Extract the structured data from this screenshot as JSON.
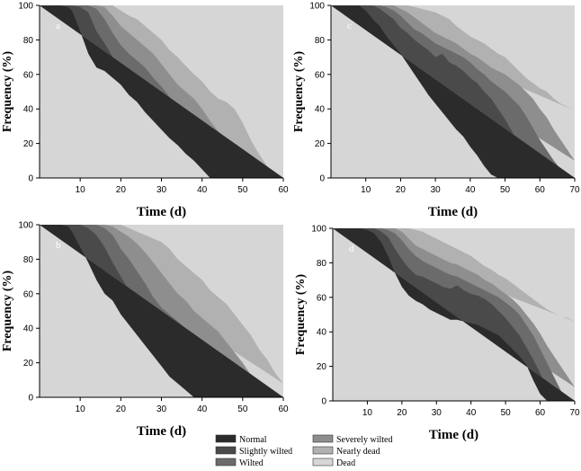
{
  "chart_data": [
    {
      "type": "area",
      "panel_label": "a",
      "xlabel": "Time (d)",
      "ylabel": "Frequency (%)",
      "xlim": [
        0,
        60
      ],
      "ylim": [
        0,
        100
      ],
      "xticks": [
        10,
        20,
        30,
        40,
        50,
        60
      ],
      "yticks": [
        0,
        20,
        40,
        60,
        80,
        100
      ],
      "x": [
        0,
        5,
        7,
        8,
        10,
        12,
        14,
        16,
        18,
        20,
        22,
        24,
        26,
        28,
        30,
        32,
        34,
        36,
        38,
        40,
        42,
        44,
        46,
        48,
        50,
        52,
        54,
        56,
        58,
        60
      ],
      "boundaries_cumulative_percent": [
        {
          "name": "Normal",
          "values": [
            100,
            100,
            99,
            97,
            85,
            72,
            64,
            62,
            58,
            54,
            48,
            44,
            38,
            33,
            28,
            23,
            19,
            14,
            10,
            5,
            0,
            0,
            0,
            0,
            0,
            0,
            0,
            0,
            0,
            0
          ]
        },
        {
          "name": "Slightly wilted",
          "values": [
            100,
            100,
            100,
            100,
            99,
            96,
            85,
            78,
            70,
            65,
            62,
            57,
            52,
            47,
            42,
            36,
            32,
            27,
            22,
            15,
            8,
            2,
            0,
            0,
            0,
            0,
            0,
            0,
            0,
            0
          ]
        },
        {
          "name": "Wilted",
          "values": [
            100,
            100,
            100,
            100,
            100,
            100,
            98,
            92,
            84,
            77,
            72,
            68,
            64,
            58,
            53,
            47,
            42,
            37,
            32,
            25,
            17,
            11,
            5,
            0,
            0,
            0,
            0,
            0,
            0,
            0
          ]
        },
        {
          "name": "Severely wilted",
          "values": [
            100,
            100,
            100,
            100,
            100,
            100,
            100,
            99,
            94,
            88,
            84,
            80,
            76,
            72,
            66,
            60,
            54,
            50,
            46,
            40,
            33,
            27,
            20,
            14,
            6,
            0,
            0,
            0,
            0,
            0
          ]
        },
        {
          "name": "Nearly dead",
          "values": [
            100,
            100,
            100,
            100,
            100,
            100,
            100,
            100,
            100,
            97,
            94,
            92,
            88,
            84,
            80,
            74,
            70,
            65,
            60,
            56,
            50,
            46,
            44,
            40,
            32,
            22,
            14,
            7,
            2,
            0
          ]
        }
      ]
    },
    {
      "type": "area",
      "panel_label": "c",
      "xlabel": "Time (d)",
      "ylabel": "Frequency (%)",
      "xlim": [
        0,
        70
      ],
      "ylim": [
        0,
        100
      ],
      "xticks": [
        10,
        20,
        30,
        40,
        50,
        60,
        70
      ],
      "yticks": [
        0,
        20,
        40,
        60,
        80,
        100
      ],
      "x": [
        0,
        8,
        10,
        12,
        14,
        16,
        18,
        20,
        22,
        24,
        26,
        28,
        30,
        32,
        34,
        36,
        38,
        40,
        42,
        44,
        46,
        48,
        50,
        52,
        54,
        56,
        58,
        60,
        62,
        64,
        66,
        68,
        70
      ],
      "boundaries_cumulative_percent": [
        {
          "name": "Normal",
          "values": [
            100,
            100,
            97,
            92,
            88,
            82,
            77,
            72,
            66,
            60,
            54,
            48,
            43,
            38,
            33,
            28,
            24,
            18,
            13,
            7,
            2,
            0,
            0,
            0,
            0,
            0,
            0,
            0,
            0,
            0,
            0,
            0,
            0
          ]
        },
        {
          "name": "Slightly wilted",
          "values": [
            100,
            100,
            100,
            100,
            98,
            95,
            92,
            87,
            84,
            80,
            77,
            74,
            70,
            72,
            67,
            65,
            62,
            58,
            55,
            50,
            46,
            40,
            34,
            27,
            20,
            14,
            8,
            4,
            0,
            0,
            0,
            0,
            0
          ]
        },
        {
          "name": "Wilted",
          "values": [
            100,
            100,
            100,
            100,
            100,
            99,
            97,
            94,
            90,
            86,
            84,
            81,
            78,
            76,
            74,
            72,
            70,
            67,
            63,
            60,
            56,
            53,
            50,
            46,
            42,
            36,
            29,
            22,
            16,
            10,
            5,
            2,
            0
          ]
        },
        {
          "name": "Severely wilted",
          "values": [
            100,
            100,
            100,
            100,
            100,
            100,
            100,
            98,
            96,
            93,
            90,
            87,
            84,
            82,
            80,
            78,
            75,
            72,
            70,
            67,
            64,
            62,
            60,
            57,
            54,
            50,
            46,
            40,
            35,
            28,
            22,
            16,
            10
          ]
        },
        {
          "name": "Nearly dead",
          "values": [
            100,
            100,
            100,
            100,
            100,
            100,
            100,
            100,
            100,
            99,
            98,
            97,
            96,
            94,
            92,
            88,
            85,
            82,
            80,
            78,
            75,
            72,
            70,
            66,
            62,
            58,
            55,
            52,
            50,
            46,
            43,
            41,
            39
          ]
        }
      ]
    },
    {
      "type": "area",
      "panel_label": "b",
      "xlabel": "Time (d)",
      "ylabel": "Frequency (%)",
      "xlim": [
        0,
        60
      ],
      "ylim": [
        0,
        100
      ],
      "xticks": [
        10,
        20,
        30,
        40,
        50,
        60
      ],
      "yticks": [
        0,
        20,
        40,
        60,
        80,
        100
      ],
      "x": [
        0,
        5,
        7,
        8,
        10,
        12,
        14,
        16,
        18,
        20,
        22,
        24,
        26,
        28,
        30,
        32,
        34,
        36,
        38,
        40,
        42,
        44,
        46,
        48,
        50,
        52,
        54,
        56,
        58,
        60
      ],
      "boundaries_cumulative_percent": [
        {
          "name": "Normal",
          "values": [
            100,
            100,
            99,
            96,
            87,
            78,
            68,
            60,
            56,
            48,
            42,
            36,
            30,
            24,
            18,
            12,
            8,
            4,
            0,
            0,
            0,
            0,
            0,
            0,
            0,
            0,
            0,
            0,
            0,
            0
          ]
        },
        {
          "name": "Slightly wilted",
          "values": [
            100,
            100,
            100,
            100,
            100,
            98,
            94,
            87,
            78,
            70,
            62,
            56,
            48,
            42,
            38,
            34,
            27,
            21,
            15,
            9,
            3,
            0,
            0,
            0,
            0,
            0,
            0,
            0,
            0,
            0
          ]
        },
        {
          "name": "Wilted",
          "values": [
            100,
            100,
            100,
            100,
            100,
            100,
            100,
            98,
            94,
            86,
            80,
            73,
            66,
            58,
            52,
            48,
            44,
            40,
            35,
            30,
            22,
            14,
            8,
            2,
            0,
            0,
            0,
            0,
            0,
            0
          ]
        },
        {
          "name": "Severely wilted",
          "values": [
            100,
            100,
            100,
            100,
            100,
            100,
            100,
            100,
            99,
            96,
            93,
            89,
            84,
            78,
            72,
            66,
            60,
            56,
            50,
            46,
            42,
            38,
            32,
            26,
            20,
            13,
            6,
            1,
            0,
            0
          ]
        },
        {
          "name": "Nearly dead",
          "values": [
            100,
            100,
            100,
            100,
            100,
            100,
            100,
            100,
            100,
            100,
            98,
            96,
            94,
            92,
            90,
            86,
            80,
            76,
            72,
            68,
            62,
            58,
            54,
            48,
            42,
            36,
            28,
            22,
            14,
            8
          ]
        }
      ]
    },
    {
      "type": "area",
      "panel_label": "d",
      "xlabel": "Time (d)",
      "ylabel": "Frequency (%)",
      "xlim": [
        0,
        70
      ],
      "ylim": [
        0,
        100
      ],
      "xticks": [
        10,
        20,
        30,
        40,
        50,
        60,
        70
      ],
      "yticks": [
        0,
        20,
        40,
        60,
        80,
        100
      ],
      "x": [
        0,
        8,
        10,
        12,
        14,
        16,
        18,
        20,
        22,
        24,
        26,
        28,
        30,
        32,
        34,
        36,
        38,
        40,
        42,
        44,
        46,
        48,
        50,
        52,
        54,
        56,
        58,
        60,
        62,
        64,
        66,
        68,
        70
      ],
      "boundaries_cumulative_percent": [
        {
          "name": "Normal",
          "values": [
            100,
            100,
            99,
            97,
            92,
            84,
            74,
            66,
            61,
            58,
            56,
            53,
            51,
            49,
            47,
            47,
            46,
            45,
            44,
            42,
            40,
            38,
            34,
            30,
            26,
            21,
            12,
            4,
            0,
            0,
            0,
            0,
            0
          ]
        },
        {
          "name": "Slightly wilted",
          "values": [
            100,
            100,
            100,
            100,
            98,
            95,
            88,
            82,
            77,
            73,
            72,
            70,
            68,
            66,
            65,
            67,
            64,
            62,
            61,
            59,
            56,
            52,
            48,
            43,
            38,
            31,
            24,
            16,
            8,
            2,
            0,
            0,
            0
          ]
        },
        {
          "name": "Wilted",
          "values": [
            100,
            100,
            100,
            100,
            100,
            99,
            97,
            93,
            88,
            84,
            81,
            79,
            77,
            75,
            73,
            72,
            70,
            68,
            66,
            64,
            62,
            60,
            57,
            54,
            50,
            44,
            38,
            30,
            22,
            14,
            6,
            0,
            0
          ]
        },
        {
          "name": "Severely wilted",
          "values": [
            100,
            100,
            100,
            100,
            100,
            100,
            100,
            98,
            94,
            90,
            88,
            86,
            84,
            82,
            80,
            79,
            77,
            75,
            73,
            70,
            68,
            65,
            62,
            59,
            55,
            50,
            45,
            39,
            32,
            26,
            20,
            14,
            8
          ]
        },
        {
          "name": "Nearly dead",
          "values": [
            100,
            100,
            100,
            100,
            100,
            100,
            100,
            100,
            100,
            99,
            98,
            96,
            94,
            92,
            90,
            88,
            86,
            84,
            81,
            78,
            76,
            73,
            71,
            68,
            65,
            62,
            59,
            56,
            53,
            51,
            49,
            48,
            46
          ]
        }
      ]
    }
  ],
  "legend": [
    {
      "label": "Normal",
      "color": "#2b2b2b"
    },
    {
      "label": "Slightly wilted",
      "color": "#4a4a4a"
    },
    {
      "label": "Wilted",
      "color": "#6b6b6b"
    },
    {
      "label": "Severely wilted",
      "color": "#8e8e8e"
    },
    {
      "label": "Nearly dead",
      "color": "#b1b1b1"
    },
    {
      "label": "Dead",
      "color": "#d6d6d6"
    }
  ]
}
